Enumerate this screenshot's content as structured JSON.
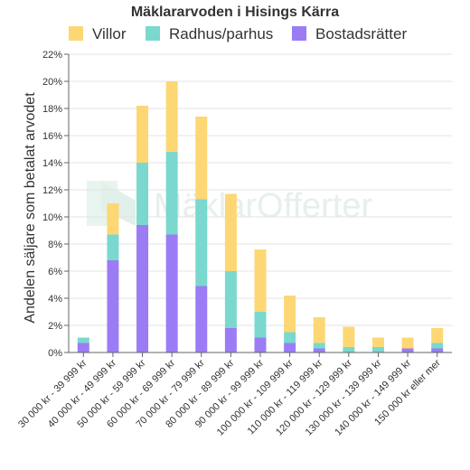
{
  "chart_data": {
    "type": "bar",
    "stacked": true,
    "title": "Mäklararvoden i Hisings Kärra",
    "ylabel": "Andelen säljare som betalat arvodet",
    "xlabel": "",
    "ylim": [
      0,
      22
    ],
    "yticks": [
      "0%",
      "2%",
      "4%",
      "6%",
      "8%",
      "10%",
      "12%",
      "14%",
      "16%",
      "18%",
      "20%",
      "22%"
    ],
    "grid": true,
    "legend_position": "top",
    "categories": [
      "30 000 kr - 39 999 kr",
      "40 000 kr - 49 999 kr",
      "50 000 kr - 59 999 kr",
      "60 000 kr - 69 999 kr",
      "70 000 kr - 79 999 kr",
      "80 000 kr - 89 999 kr",
      "90 000 kr - 99 999 kr",
      "100 000 kr - 109 999 kr",
      "110 000 kr - 119 999 kr",
      "120 000 kr - 129 999 kr",
      "130 000 kr - 139 999 kr",
      "140 000 kr - 149 999 kr",
      "150 000 kr eller mer"
    ],
    "series": [
      {
        "name": "Bostadsrätter",
        "color": "#9b7cf5",
        "values": [
          0.7,
          6.8,
          9.4,
          8.7,
          4.9,
          1.8,
          1.1,
          0.7,
          0.3,
          0,
          0,
          0.3,
          0.3
        ]
      },
      {
        "name": "Radhus/parhus",
        "color": "#7ad8cf",
        "values": [
          0.4,
          1.9,
          4.6,
          6.1,
          6.4,
          4.2,
          1.9,
          0.8,
          0.4,
          0.4,
          0.4,
          0,
          0.4
        ]
      },
      {
        "name": "Villor",
        "color": "#fdd774",
        "values": [
          0,
          2.3,
          4.2,
          5.2,
          6.1,
          5.7,
          4.6,
          2.7,
          1.9,
          1.5,
          0.7,
          0.8,
          1.1
        ]
      }
    ],
    "legend_order": [
      "Villor",
      "Radhus/parhus",
      "Bostadsrätter"
    ]
  },
  "watermark": "MäklarOfferter"
}
